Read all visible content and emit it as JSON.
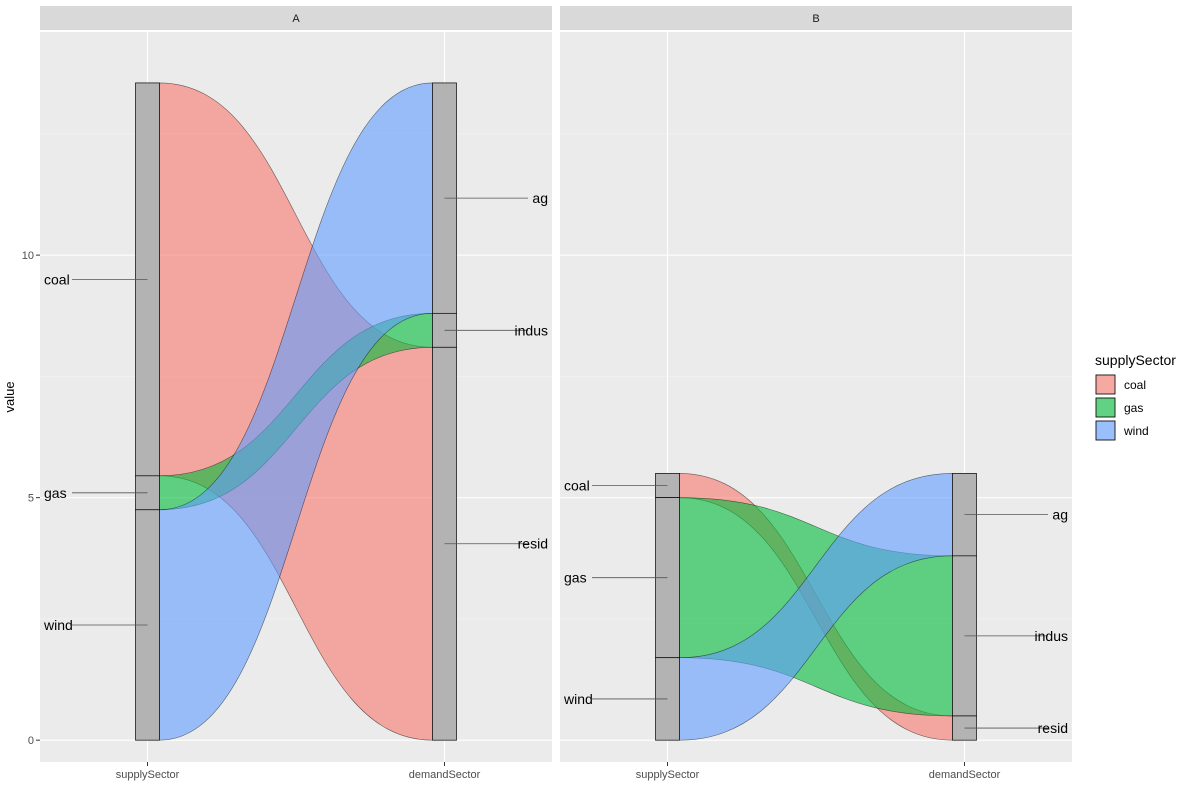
{
  "chart_data": {
    "type": "alluvial",
    "ylabel": "value",
    "yticks": [
      0,
      5,
      10
    ],
    "ylim": [
      -0.45,
      14.6
    ],
    "axes": [
      "supplySector",
      "demandSector"
    ],
    "legend": {
      "title": "supplySector",
      "position": "right",
      "items": [
        {
          "name": "coal",
          "color": "#F8766D"
        },
        {
          "name": "gas",
          "color": "#00BA38"
        },
        {
          "name": "wind",
          "color": "#619CFF"
        }
      ]
    },
    "panels": [
      {
        "strip": "A",
        "supply_order": [
          "coal",
          "gas",
          "wind"
        ],
        "demand_order": [
          "ag",
          "indus",
          "resid"
        ],
        "flows": [
          {
            "supply": "coal",
            "demand": "resid",
            "value": 8.1
          },
          {
            "supply": "gas",
            "demand": "indus",
            "value": 0.7
          },
          {
            "supply": "wind",
            "demand": "ag",
            "value": 4.75
          }
        ]
      },
      {
        "strip": "B",
        "supply_order": [
          "coal",
          "gas",
          "wind"
        ],
        "demand_order": [
          "ag",
          "indus",
          "resid"
        ],
        "flows": [
          {
            "supply": "coal",
            "demand": "resid",
            "value": 0.5
          },
          {
            "supply": "gas",
            "demand": "indus",
            "value": 3.3
          },
          {
            "supply": "wind",
            "demand": "ag",
            "value": 1.7
          }
        ]
      }
    ]
  }
}
